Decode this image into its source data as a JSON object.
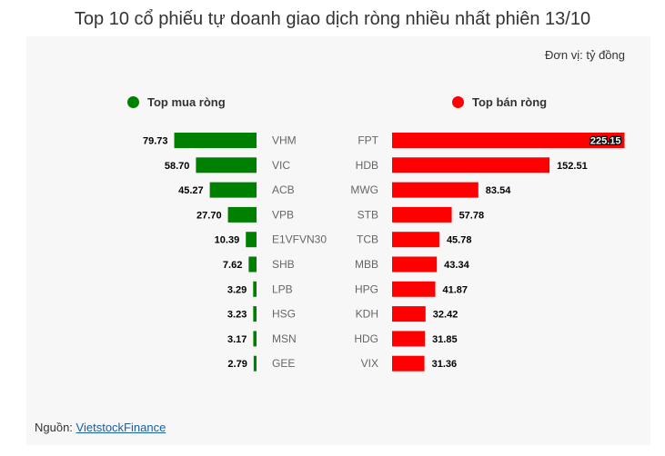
{
  "title": "Top 10 cổ phiếu tự doanh giao dịch ròng nhiều nhất phiên 13/10",
  "unit_label": "Đơn vị: tỷ đồng",
  "source_prefix": "Nguồn: ",
  "source_link": "VietstockFinance",
  "colors": {
    "buy": "#008000",
    "sell": "#ff0000"
  },
  "chart_data": [
    {
      "type": "bar",
      "orientation": "horizontal",
      "legend": "Top mua ròng",
      "categories": [
        "VHM",
        "VIC",
        "ACB",
        "VPB",
        "E1VFVN30",
        "SHB",
        "LPB",
        "HSG",
        "MSN",
        "GEE"
      ],
      "values": [
        79.73,
        58.7,
        45.27,
        27.7,
        10.39,
        7.62,
        3.29,
        3.23,
        3.17,
        2.79
      ],
      "value_labels": [
        "79.73",
        "58.70",
        "45.27",
        "27.70",
        "10.39",
        "7.62",
        "3.29",
        "3.23",
        "3.17",
        "2.79"
      ],
      "color": "#008000"
    },
    {
      "type": "bar",
      "orientation": "horizontal",
      "legend": "Top bán ròng",
      "categories": [
        "FPT",
        "HDB",
        "MWG",
        "STB",
        "TCB",
        "MBB",
        "HPG",
        "KDH",
        "HDG",
        "VIX"
      ],
      "values": [
        225.15,
        152.51,
        83.54,
        57.78,
        45.78,
        43.34,
        41.87,
        32.42,
        31.85,
        31.36
      ],
      "value_labels": [
        "225.15",
        "152.51",
        "83.54",
        "57.78",
        "45.78",
        "43.34",
        "41.87",
        "32.42",
        "31.85",
        "31.36"
      ],
      "color": "#ff0000"
    }
  ]
}
